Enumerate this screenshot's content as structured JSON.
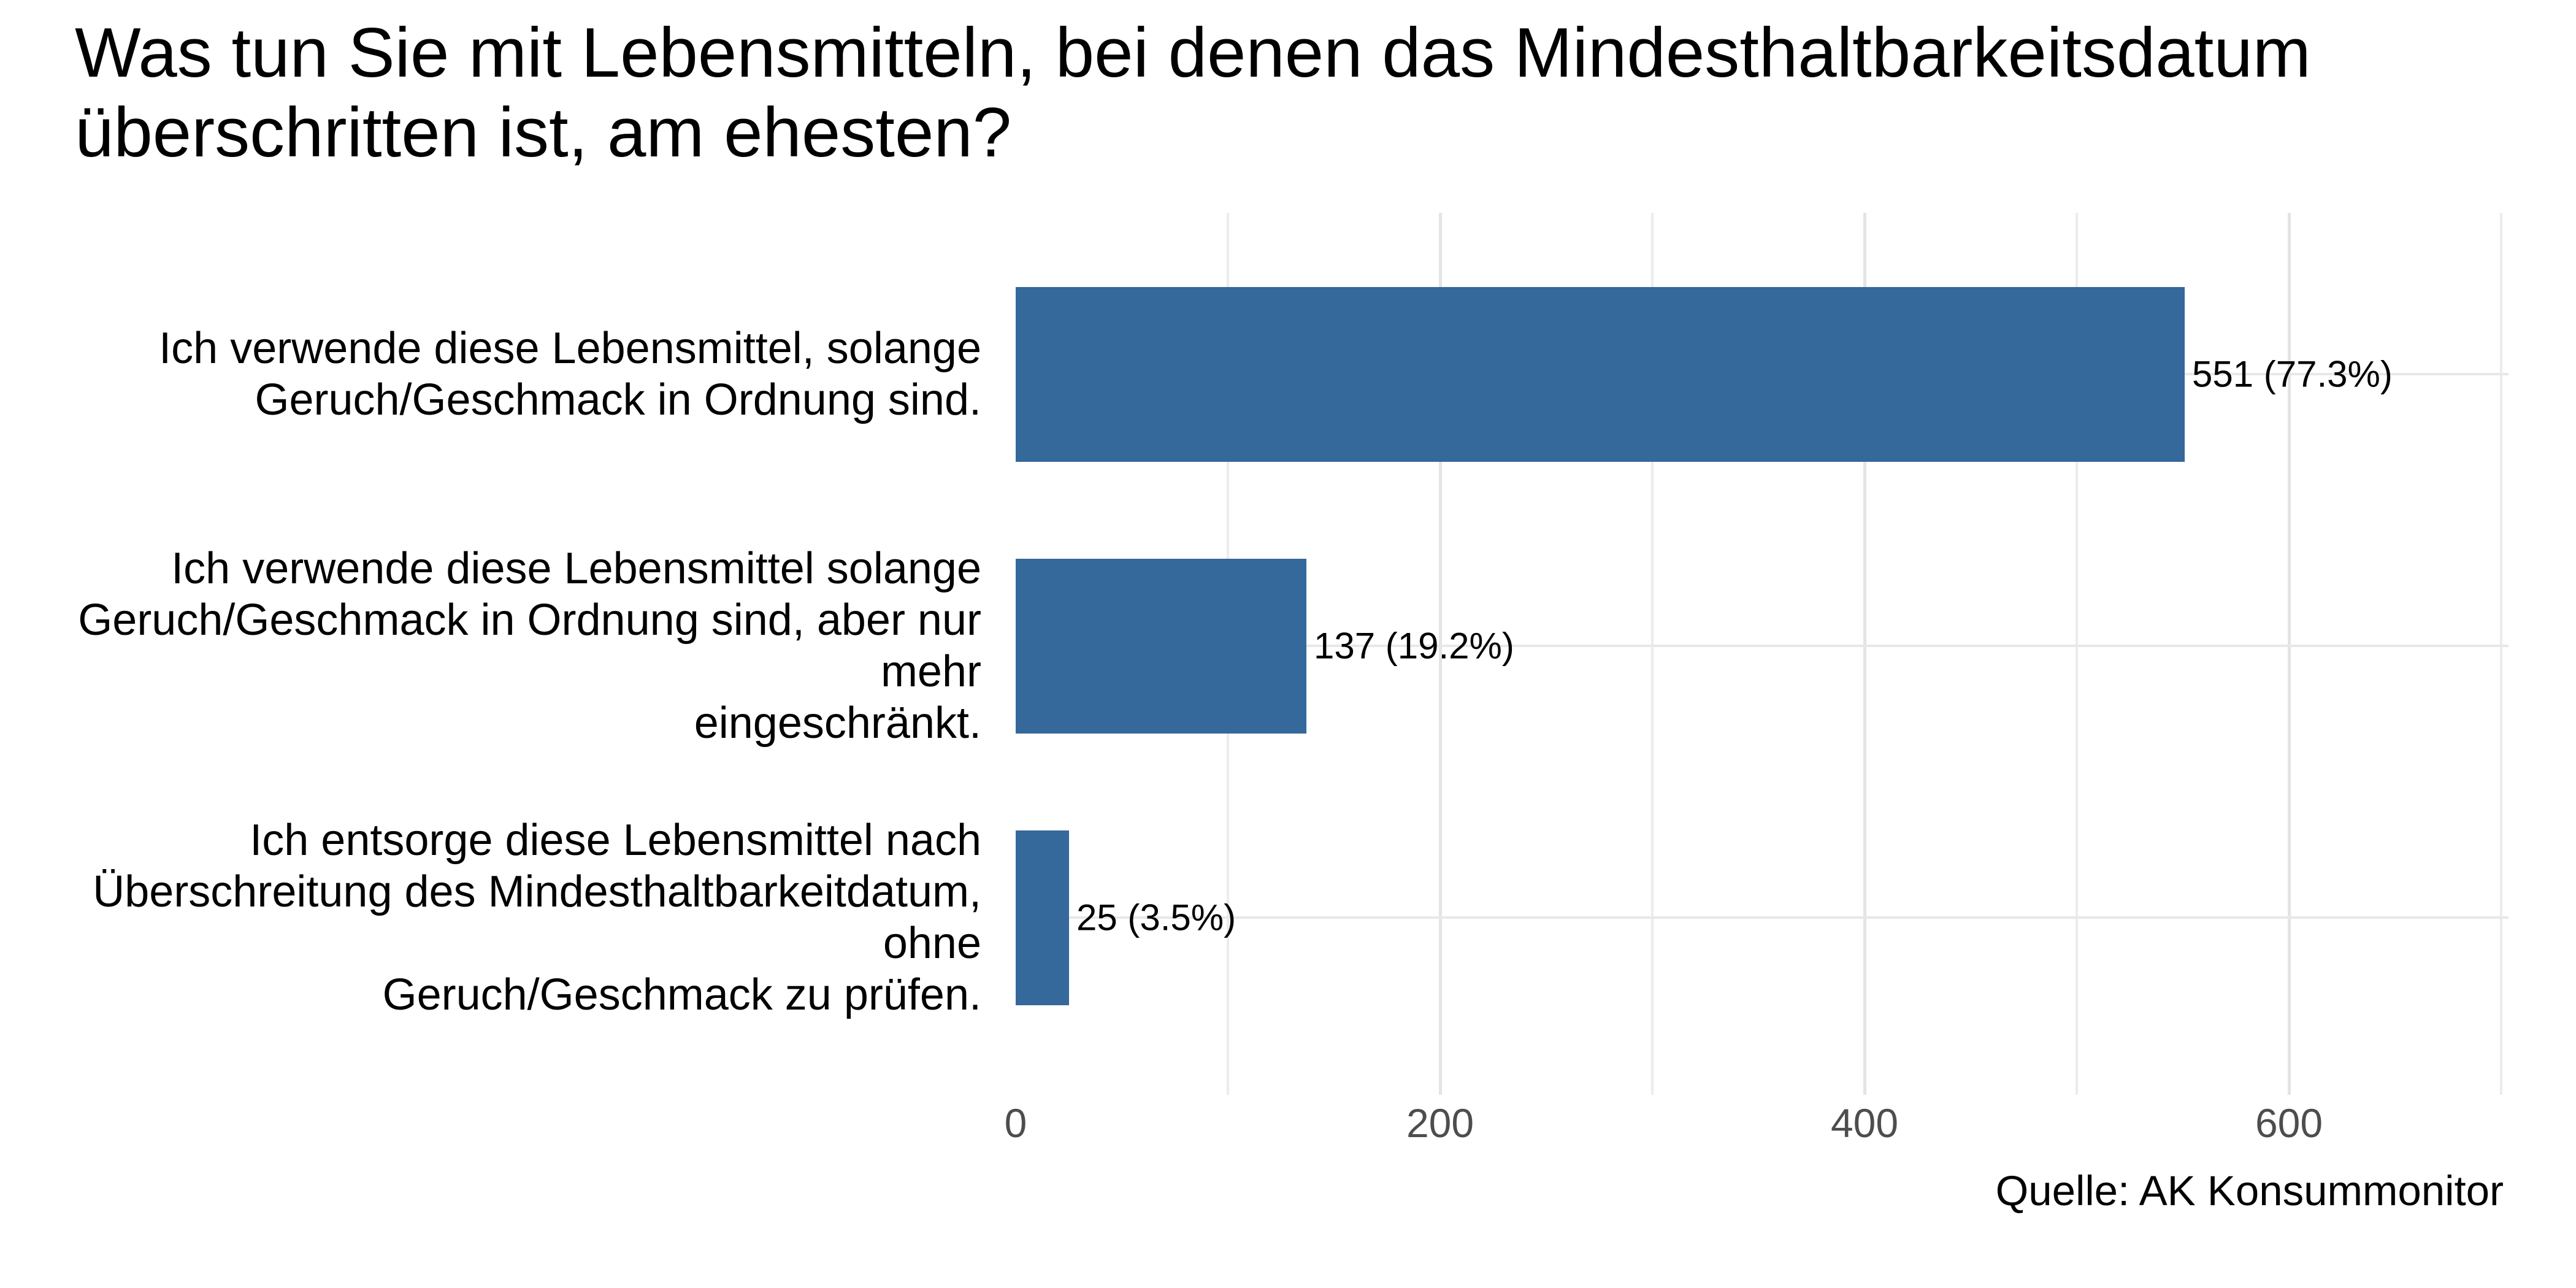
{
  "chart_data": {
    "type": "bar",
    "orientation": "horizontal",
    "title": "Was tun Sie mit Lebensmitteln, bei denen das Mindesthaltbarkeitsdatum überschritten ist, am ehesten?",
    "caption": "Quelle: AK Konsummonitor",
    "xlabel": "",
    "ylabel": "",
    "xlim": [
      0,
      708
    ],
    "grid": "major-and-minor-x",
    "legend": "none",
    "bar_color": "#35689B",
    "tick_text_color": "#4D4D4D",
    "gridline_color": "#E8E8E8",
    "x_ticks": [
      {
        "value": 0,
        "label": "0"
      },
      {
        "value": 200,
        "label": "200"
      },
      {
        "value": 400,
        "label": "400"
      },
      {
        "value": 600,
        "label": "600"
      }
    ],
    "minor_gridlines": [
      100,
      300,
      500,
      700
    ],
    "categories": [
      "Ich verwende diese Lebensmittel, solange Geruch/Geschmack in Ordnung sind.",
      "Ich verwende diese Lebensmittel solange Geruch/Geschmack in Ordnung sind, aber nur mehr eingeschränkt.",
      "Ich entsorge diese Lebensmittel nach Überschreitung des Mindesthaltbarkeitdatum, ohne Geruch/Geschmack zu prüfen."
    ],
    "rows": [
      {
        "label": "Ich verwende diese Lebensmittel, solange\nGeruch/Geschmack in Ordnung sind.",
        "value": 551,
        "percent": 77.3,
        "value_label": "551 (77.3%)"
      },
      {
        "label": "Ich verwende diese Lebensmittel solange\nGeruch/Geschmack in Ordnung sind, aber nur mehr\neingeschränkt.",
        "value": 137,
        "percent": 19.2,
        "value_label": "137 (19.2%)"
      },
      {
        "label": "Ich entsorge diese Lebensmittel nach\nÜberschreitung des Mindesthaltbarkeitdatum, ohne\nGeruch/Geschmack zu prüfen.",
        "value": 25,
        "percent": 3.5,
        "value_label": "25 (3.5%)"
      }
    ]
  }
}
